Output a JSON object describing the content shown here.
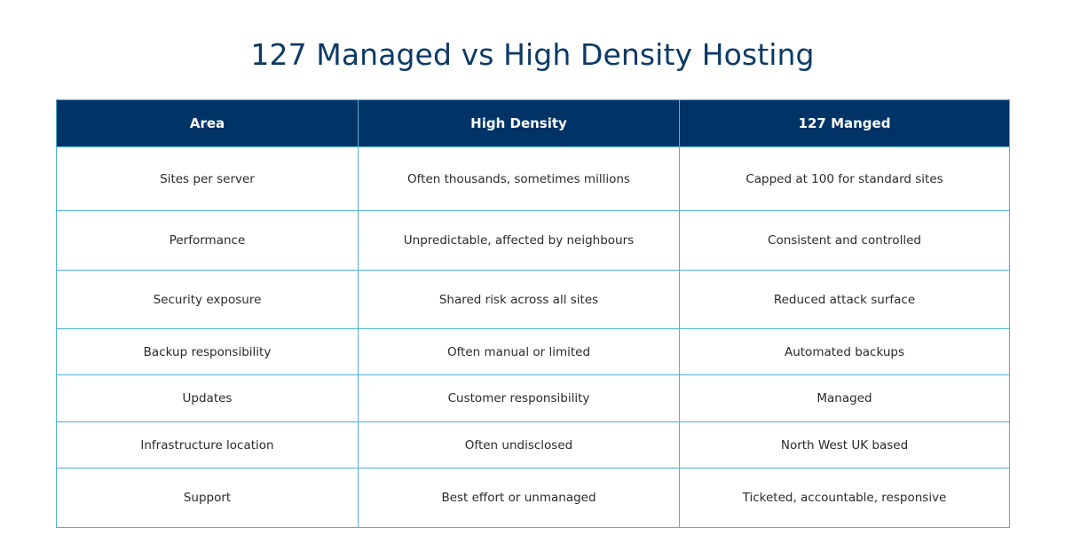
{
  "title": "127 Managed vs High Density Hosting",
  "table": {
    "headers": [
      "Area",
      "High Density",
      "127 Manged"
    ],
    "rows": [
      [
        "Sites per server",
        "Often thousands, sometimes millions",
        "Capped at 100 for standard sites"
      ],
      [
        "Performance",
        "Unpredictable, affected by neighbours",
        "Consistent and controlled"
      ],
      [
        "Security exposure",
        "Shared risk across all sites",
        "Reduced attack surface"
      ],
      [
        "Backup responsibility",
        "Often manual or limited",
        "Automated backups"
      ],
      [
        "Updates",
        "Customer responsibility",
        "Managed"
      ],
      [
        "Infrastructure location",
        "Often undisclosed",
        "North West UK based"
      ],
      [
        "Support",
        "Best effort or unmanaged",
        "Ticketed, accountable, responsive"
      ]
    ]
  },
  "colors": {
    "title": "#0d3a66",
    "header_bg": "#003366",
    "header_text": "#ffffff",
    "border": "#4fb1d8",
    "cell_text": "#2a2a2a"
  }
}
